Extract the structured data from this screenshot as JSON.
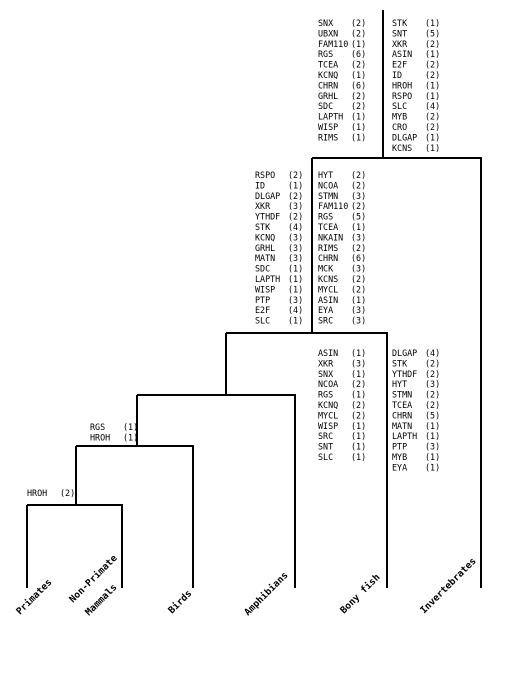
{
  "taxa": [
    {
      "id": "primates",
      "label": "Primates"
    },
    {
      "id": "non-primate-mammals",
      "label_line1": "Non-Primate",
      "label_line2": "Mammals"
    },
    {
      "id": "birds",
      "label": "Birds"
    },
    {
      "id": "amphibians",
      "label": "Amphibians"
    },
    {
      "id": "bony-fish",
      "label": "Bony fish"
    },
    {
      "id": "invertebrates",
      "label": "Invertebrates"
    }
  ],
  "gene_lists": {
    "mammals": [
      {
        "gene": "HROH",
        "count": "(2)"
      }
    ],
    "amniotes": [
      {
        "gene": "RGS",
        "count": "(1)"
      },
      {
        "gene": "HROH",
        "count": "(1)"
      }
    ],
    "vertebrates_left": [
      {
        "gene": "RSPO",
        "count": "(2)"
      },
      {
        "gene": "ID",
        "count": "(1)"
      },
      {
        "gene": "DLGAP",
        "count": "(2)"
      },
      {
        "gene": "XKR",
        "count": "(3)"
      },
      {
        "gene": "YTHDF",
        "count": "(2)"
      },
      {
        "gene": "STK",
        "count": "(4)"
      },
      {
        "gene": "KCNQ",
        "count": "(3)"
      },
      {
        "gene": "GRHL",
        "count": "(3)"
      },
      {
        "gene": "MATN",
        "count": "(3)"
      },
      {
        "gene": "SDC",
        "count": "(1)"
      },
      {
        "gene": "LAPTH",
        "count": "(1)"
      },
      {
        "gene": "WISP",
        "count": "(1)"
      },
      {
        "gene": "PTP",
        "count": "(3)"
      },
      {
        "gene": "E2F",
        "count": "(4)"
      },
      {
        "gene": "SLC",
        "count": "(1)"
      }
    ],
    "vertebrates_right": [
      {
        "gene": "HYT",
        "count": "(2)"
      },
      {
        "gene": "NCOA",
        "count": "(2)"
      },
      {
        "gene": "STMN",
        "count": "(3)"
      },
      {
        "gene": "FAM110",
        "count": "(2)"
      },
      {
        "gene": "RGS",
        "count": "(5)"
      },
      {
        "gene": "TCEA",
        "count": "(1)"
      },
      {
        "gene": "NKAIN",
        "count": "(3)"
      },
      {
        "gene": "RIMS",
        "count": "(2)"
      },
      {
        "gene": "CHRN",
        "count": "(6)"
      },
      {
        "gene": "MCK",
        "count": "(3)"
      },
      {
        "gene": "KCNS",
        "count": "(2)"
      },
      {
        "gene": "MYCL",
        "count": "(2)"
      },
      {
        "gene": "ASIN",
        "count": "(1)"
      },
      {
        "gene": "EYA",
        "count": "(3)"
      },
      {
        "gene": "SRC",
        "count": "(3)"
      }
    ],
    "root_left": [
      {
        "gene": "SNX",
        "count": "(2)"
      },
      {
        "gene": "UBXN",
        "count": "(2)"
      },
      {
        "gene": "FAM110",
        "count": "(1)"
      },
      {
        "gene": "RGS",
        "count": "(6)"
      },
      {
        "gene": "TCEA",
        "count": "(2)"
      },
      {
        "gene": "KCNQ",
        "count": "(1)"
      },
      {
        "gene": "CHRN",
        "count": "(6)"
      },
      {
        "gene": "GRHL",
        "count": "(2)"
      },
      {
        "gene": "SDC",
        "count": "(2)"
      },
      {
        "gene": "LAPTH",
        "count": "(1)"
      },
      {
        "gene": "WISP",
        "count": "(1)"
      },
      {
        "gene": "RIMS",
        "count": "(1)"
      }
    ],
    "root_right": [
      {
        "gene": "STK",
        "count": "(1)"
      },
      {
        "gene": "SNT",
        "count": "(5)"
      },
      {
        "gene": "XKR",
        "count": "(2)"
      },
      {
        "gene": "ASIN",
        "count": "(1)"
      },
      {
        "gene": "E2F",
        "count": "(2)"
      },
      {
        "gene": "ID",
        "count": "(2)"
      },
      {
        "gene": "HROH",
        "count": "(1)"
      },
      {
        "gene": "RSPO",
        "count": "(1)"
      },
      {
        "gene": "SLC",
        "count": "(4)"
      },
      {
        "gene": "MYB",
        "count": "(2)"
      },
      {
        "gene": "CRO",
        "count": "(2)"
      },
      {
        "gene": "DLGAP",
        "count": "(1)"
      },
      {
        "gene": "KCNS",
        "count": "(1)"
      }
    ],
    "bony_fish": [
      {
        "gene": "ASIN",
        "count": "(1)"
      },
      {
        "gene": "XKR",
        "count": "(3)"
      },
      {
        "gene": "SNX",
        "count": "(1)"
      },
      {
        "gene": "NCOA",
        "count": "(2)"
      },
      {
        "gene": "RGS",
        "count": "(1)"
      },
      {
        "gene": "KCNQ",
        "count": "(2)"
      },
      {
        "gene": "MYCL",
        "count": "(2)"
      },
      {
        "gene": "WISP",
        "count": "(1)"
      },
      {
        "gene": "SRC",
        "count": "(1)"
      },
      {
        "gene": "SNT",
        "count": "(1)"
      },
      {
        "gene": "SLC",
        "count": "(1)"
      }
    ],
    "invertebrates": [
      {
        "gene": "DLGAP",
        "count": "(4)"
      },
      {
        "gene": "STK",
        "count": "(2)"
      },
      {
        "gene": "YTHDF",
        "count": "(2)"
      },
      {
        "gene": "HYT",
        "count": "(3)"
      },
      {
        "gene": "STMN",
        "count": "(2)"
      },
      {
        "gene": "TCEA",
        "count": "(2)"
      },
      {
        "gene": "CHRN",
        "count": "(5)"
      },
      {
        "gene": "MATN",
        "count": "(1)"
      },
      {
        "gene": "LAPTH",
        "count": "(1)"
      },
      {
        "gene": "PTP",
        "count": "(3)"
      },
      {
        "gene": "MYB",
        "count": "(1)"
      },
      {
        "gene": "EYA",
        "count": "(1)"
      }
    ]
  }
}
